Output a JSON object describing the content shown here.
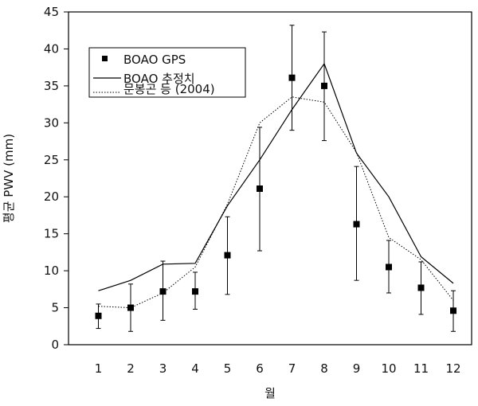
{
  "chart_data": {
    "type": "line",
    "x": [
      1,
      2,
      3,
      4,
      5,
      6,
      7,
      8,
      9,
      10,
      11,
      12
    ],
    "xlabel": "월",
    "ylabel": "평균 PWV (mm)",
    "ylim": [
      0,
      45
    ],
    "yticks": [
      0,
      5,
      10,
      15,
      20,
      25,
      30,
      35,
      40,
      45
    ],
    "xticks": [
      "1",
      "2",
      "3",
      "4",
      "5",
      "6",
      "7",
      "8",
      "9",
      "10",
      "11",
      "12"
    ],
    "grid": false,
    "legend_position": "top-left",
    "series": [
      {
        "name": "BOAO GPS",
        "style": "markers-with-errorbars",
        "values": [
          3.9,
          5.0,
          7.2,
          7.2,
          12.1,
          21.1,
          36.1,
          35.0,
          16.3,
          10.5,
          7.7,
          4.6
        ],
        "err_low": [
          2.2,
          1.8,
          3.3,
          4.8,
          6.8,
          12.7,
          29.0,
          27.6,
          8.7,
          7.0,
          4.1,
          1.8
        ],
        "err_high": [
          5.5,
          8.2,
          11.3,
          9.8,
          17.3,
          29.4,
          43.2,
          42.3,
          24.1,
          14.1,
          11.2,
          7.3
        ]
      },
      {
        "name": "BOAO 추정치",
        "style": "solid",
        "values": [
          7.3,
          8.7,
          10.9,
          11.0,
          18.8,
          25.0,
          31.8,
          38.0,
          25.9,
          20.0,
          11.9,
          8.3
        ]
      },
      {
        "name": "문봉곤 등 (2004)",
        "style": "dotted",
        "values": [
          5.2,
          5.0,
          7.0,
          10.5,
          19.0,
          30.0,
          33.5,
          32.8,
          26.0,
          14.5,
          11.5,
          6.0
        ]
      }
    ]
  }
}
